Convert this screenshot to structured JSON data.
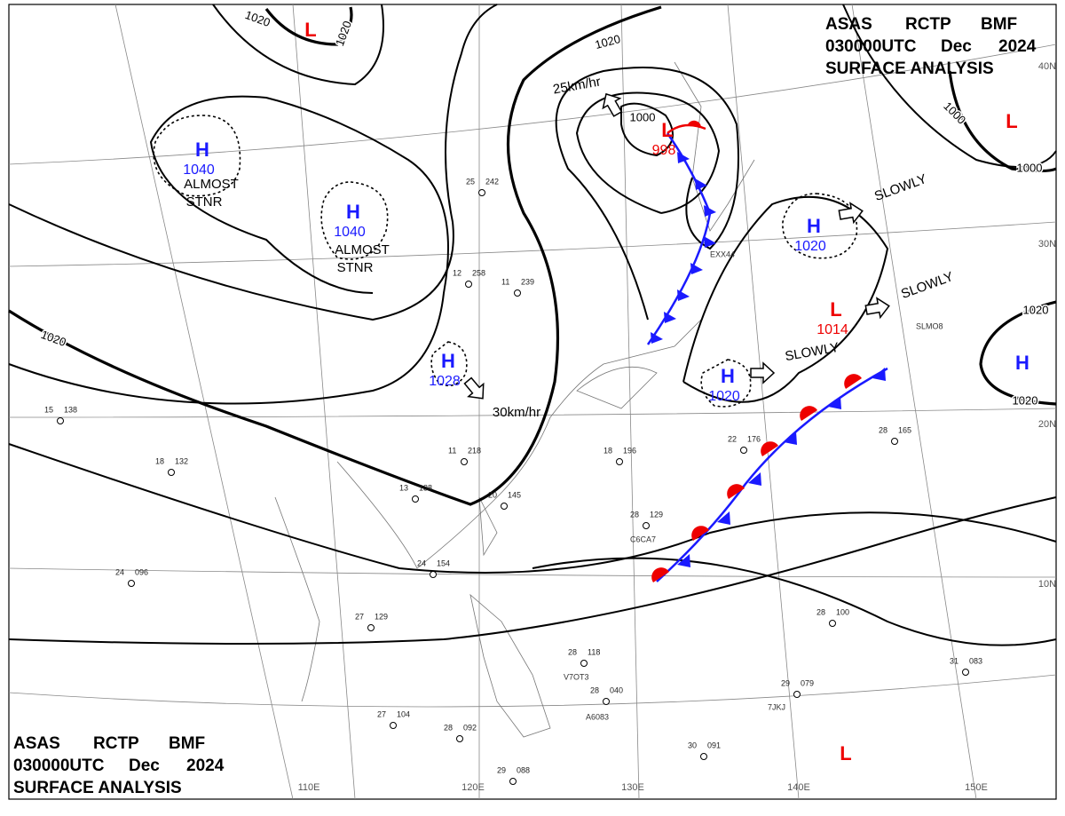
{
  "headers": [
    {
      "line1": [
        "ASAS",
        "RCTP",
        "BMF"
      ],
      "line2": [
        "030000UTC",
        "Dec",
        "2024"
      ],
      "line3": "SURFACE ANALYSIS"
    },
    {
      "line1": [
        "ASAS",
        "RCTP",
        "BMF"
      ],
      "line2": [
        "030000UTC",
        "Dec",
        "2024"
      ],
      "line3": "SURFACE ANALYSIS"
    }
  ],
  "systems": [
    {
      "symbol": "H",
      "pressure": "1040"
    },
    {
      "symbol": "H",
      "pressure": "1040"
    },
    {
      "symbol": "H",
      "pressure": "1028"
    },
    {
      "symbol": "H",
      "pressure": "1020"
    },
    {
      "symbol": "H",
      "pressure": "1020"
    },
    {
      "symbol": "H"
    },
    {
      "symbol": "L",
      "pressure": "998"
    },
    {
      "symbol": "L",
      "pressure": "1014"
    },
    {
      "symbol": "L"
    },
    {
      "symbol": "L"
    },
    {
      "symbol": "L"
    }
  ],
  "isobar_labels": [
    "1020",
    "1020",
    "1020",
    "1000",
    "1000",
    "1000",
    "1020",
    "1020",
    "1020"
  ],
  "movements": [
    "25km/hr",
    "30km/hr",
    "SLOWLY",
    "SLOWLY",
    "SLOWLY"
  ],
  "notes": [
    [
      "ALMOST",
      "STNR"
    ],
    [
      "ALMOST",
      "STNR"
    ]
  ],
  "latitude_labels": [
    "40N",
    "30N",
    "20N",
    "10N"
  ],
  "longitude_labels": [
    "110E",
    "120E",
    "130E",
    "140E",
    "150E"
  ],
  "stations": [
    {
      "temp": "15",
      "pressure": "138"
    },
    {
      "temp": "18",
      "pressure": "132"
    },
    {
      "temp": "24",
      "pressure": "096"
    },
    {
      "temp": "13",
      "pressure": "138"
    },
    {
      "temp": "20",
      "pressure": "145"
    },
    {
      "temp": "24",
      "pressure": "154"
    },
    {
      "temp": "27",
      "pressure": "129"
    },
    {
      "temp": "28",
      "pressure": "129"
    },
    {
      "temp": "28",
      "pressure": "165"
    },
    {
      "temp": "28",
      "pressure": "100"
    },
    {
      "temp": "28",
      "pressure": "118"
    },
    {
      "temp": "28",
      "pressure": "040"
    },
    {
      "temp": "29",
      "pressure": "079"
    },
    {
      "temp": "31",
      "pressure": "083"
    },
    {
      "temp": "30",
      "pressure": "091"
    },
    {
      "temp": "27",
      "pressure": "104"
    },
    {
      "temp": "28",
      "pressure": "092"
    },
    {
      "temp": "29",
      "pressure": "088"
    },
    {
      "temp": "22",
      "pressure": "176"
    },
    {
      "temp": "18",
      "pressure": "196"
    },
    {
      "temp": "11",
      "pressure": "218"
    },
    {
      "temp": "12",
      "pressure": "258"
    },
    {
      "temp": "11",
      "pressure": "239"
    },
    {
      "temp": "25",
      "pressure": "242"
    }
  ],
  "ship_ids": [
    "EXX44",
    "C6CA7",
    "V7OT3",
    "A6083",
    "7JKJ",
    "SLMO8"
  ]
}
